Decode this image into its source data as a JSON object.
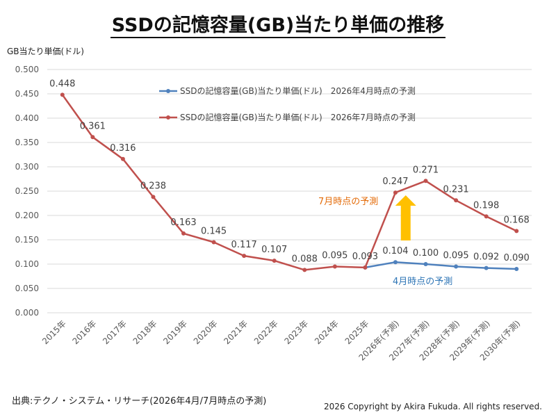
{
  "title": "SSDの記憶容量(GB)当たり単価の推移",
  "footer": {
    "source": "出典:テクノ・システム・リサーチ(2026年4月/7月時点の予測)",
    "copyright": "2026 Copyright by Akira Fukuda.  All rights reserved."
  },
  "chart_data": {
    "type": "line",
    "ylabel": "GB当たり単価(ドル)",
    "xlabel": "",
    "ylim": [
      0,
      0.5
    ],
    "yticks": [
      "0.000",
      "0.050",
      "0.100",
      "0.150",
      "0.200",
      "0.250",
      "0.300",
      "0.350",
      "0.400",
      "0.450",
      "0.500"
    ],
    "grid": true,
    "legend": "top-center",
    "categories": [
      "2015年",
      "2016年",
      "2017年",
      "2018年",
      "2019年",
      "2020年",
      "2021年",
      "2022年",
      "2023年",
      "2024年",
      "2025年",
      "2026年(予測)",
      "2027年(予測)",
      "2028年(予測)",
      "2029年(予測)",
      "2030年(予測)"
    ],
    "series": [
      {
        "name": "SSDの記憶容量(GB)当たり単価(ドル)　2026年4月時点の予測",
        "color": "#4f81bd",
        "values": [
          null,
          null,
          null,
          null,
          null,
          null,
          null,
          null,
          null,
          null,
          0.093,
          0.104,
          0.1,
          0.095,
          0.092,
          0.09
        ],
        "labels": [
          null,
          null,
          null,
          null,
          null,
          null,
          null,
          null,
          null,
          null,
          null,
          "0.104",
          "0.100",
          "0.095",
          "0.092",
          "0.090"
        ]
      },
      {
        "name": "SSDの記憶容量(GB)当たり単価(ドル)　2026年7月時点の予測",
        "color": "#c0504d",
        "values": [
          0.448,
          0.361,
          0.316,
          0.238,
          0.163,
          0.145,
          0.117,
          0.107,
          0.088,
          0.095,
          0.093,
          0.247,
          0.271,
          0.231,
          0.198,
          0.168
        ],
        "labels": [
          "0.448",
          "0.361",
          "0.316",
          "0.238",
          "0.163",
          "0.145",
          "0.117",
          "0.107",
          "0.088",
          "0.095",
          "0.093",
          "0.247",
          "0.271",
          "0.231",
          "0.198",
          "0.168"
        ]
      }
    ],
    "annotations": {
      "july_forecast": "7月時点の予測",
      "april_forecast": "4月時点の予測",
      "july_color": "#e46c0a",
      "april_color": "#2e75b6",
      "arrow_color": "#ffc000"
    }
  }
}
